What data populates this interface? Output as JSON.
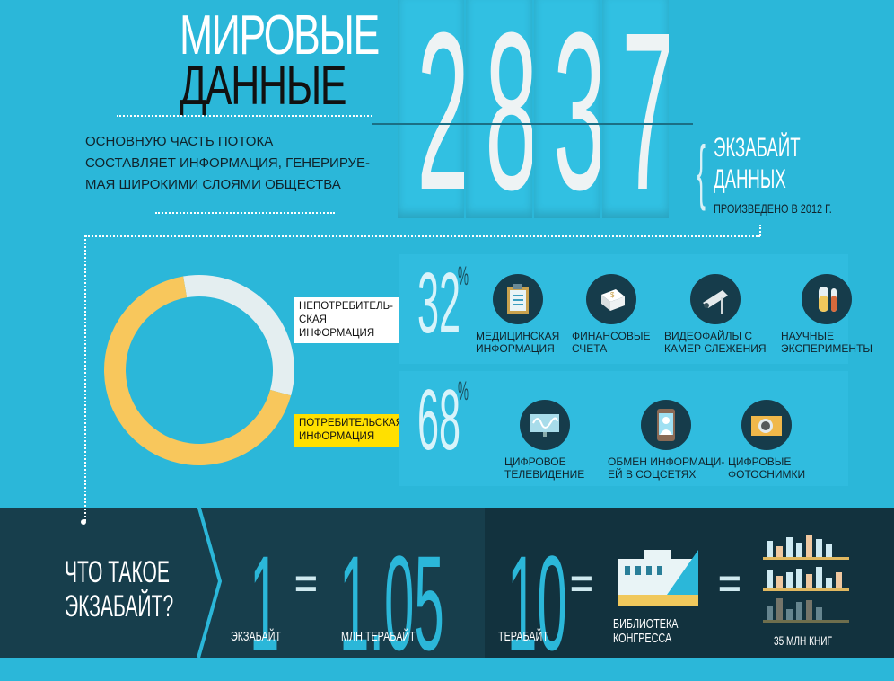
{
  "header": {
    "title_line1": "МИРОВЫЕ",
    "title_line2": "ДАННЫЕ",
    "subtitle": [
      "ОСНОВНУЮ ЧАСТЬ ПОТОКА",
      "СОСТАВЛЯЕТ ИНФОРМАЦИЯ, ГЕНЕРИРУЕ-",
      "МАЯ ШИРОКИМИ СЛОЯМИ ОБЩЕСТВА"
    ],
    "digits": [
      "2",
      "8",
      "3",
      "7"
    ],
    "unit_line1": "ЭКЗАБАЙТ",
    "unit_line2": "ДАННЫХ",
    "produced": "ПРОИЗВЕДЕНО В 2012 Г."
  },
  "chart_data": {
    "type": "pie",
    "donut": true,
    "series": [
      {
        "name": "НЕПОТРЕБИТЕЛЬСКАЯ ИНФОРМАЦИЯ",
        "value": 32,
        "color": "#e4eef0"
      },
      {
        "name": "ПОТРЕБИТЕЛЬСКАЯ ИНФОРМАЦИЯ",
        "value": 68,
        "color": "#f8c75c"
      }
    ]
  },
  "labels": {
    "nonconsumer": [
      "НЕПОТРЕБИТЕЛЬ-",
      "СКАЯ ИНФОРМАЦИЯ"
    ],
    "consumer": [
      "ПОТРЕБИТЕЛЬСКАЯ",
      "ИНФОРМАЦИЯ"
    ]
  },
  "nonconsumer": {
    "percent": "32",
    "sign": "%",
    "items": [
      {
        "icon": "clipboard-icon",
        "label": [
          "МЕДИЦИНСКАЯ",
          "ИНФОРМАЦИЯ"
        ]
      },
      {
        "icon": "money-stack-icon",
        "label": [
          "ФИНАНСОВЫЕ",
          "СЧЕТА"
        ]
      },
      {
        "icon": "security-camera-icon",
        "label": [
          "ВИДЕОФАЙЛЫ С",
          "КАМЕР СЛЕЖЕНИЯ"
        ]
      },
      {
        "icon": "test-tubes-icon",
        "label": [
          "НАУЧНЫЕ",
          "ЭКСПЕРИМЕНТЫ"
        ]
      }
    ]
  },
  "consumer": {
    "percent": "68",
    "sign": "%",
    "items": [
      {
        "icon": "tv-icon",
        "label": [
          "ЦИФРОВОЕ",
          "ТЕЛЕВИДЕНИЕ"
        ]
      },
      {
        "icon": "smartphone-icon",
        "label": [
          "ОБМЕН ИНФОРМАЦИ-",
          "ЕЙ В СОЦСЕТЯХ"
        ]
      },
      {
        "icon": "camera-icon",
        "label": [
          "ЦИФРОВЫЕ",
          "ФОТОСНИМКИ"
        ]
      }
    ]
  },
  "bottom": {
    "question": [
      "ЧТО ТАКОЕ",
      "ЭКЗАБАЙТ?"
    ],
    "n1": "1",
    "l1": "ЭКЗАБАЙТ",
    "eq": "=",
    "n2": "1.05",
    "l2": "МЛН ТЕРАБАЙТ",
    "n3": "10",
    "l3": "ТЕРАБАЙТ",
    "library": [
      "БИБЛИОТЕКА",
      "КОНГРЕССА"
    ],
    "books": "35 МЛН КНИГ"
  },
  "colors": {
    "background": "#2bb7d9",
    "dark": "#173e4c",
    "yellow": "#f8c75c",
    "label_yellow": "#ffe000"
  }
}
